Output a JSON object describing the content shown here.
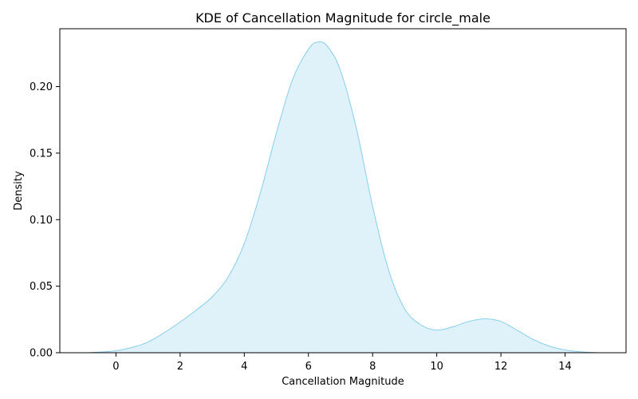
{
  "chart_data": {
    "type": "area",
    "title": "KDE of Cancellation Magnitude for circle_male",
    "xlabel": "Cancellation Magnitude",
    "ylabel": "Density",
    "xlim": [
      -1.75,
      15.9
    ],
    "ylim": [
      0.0,
      0.2435
    ],
    "grid": false,
    "xticks": [
      0,
      2,
      4,
      6,
      8,
      10,
      12,
      14
    ],
    "yticks": [
      0.0,
      0.05,
      0.1,
      0.15,
      0.2
    ],
    "ytick_labels": [
      "0.00",
      "0.05",
      "0.10",
      "0.15",
      "0.20"
    ],
    "colors": {
      "line": "#87ceeb",
      "fill": "#87ceeb",
      "fill_opacity": 0.27
    },
    "series": [
      {
        "x": [
          -0.9,
          -0.5,
          0,
          0.5,
          1,
          1.5,
          2,
          2.5,
          3,
          3.5,
          4,
          4.5,
          5,
          5.5,
          6,
          6.3,
          6.6,
          7,
          7.5,
          8,
          8.5,
          9,
          9.5,
          10,
          10.5,
          11,
          11.5,
          12,
          12.5,
          13,
          13.5,
          14,
          14.5,
          15.1
        ],
        "y": [
          0.0,
          0.0005,
          0.0015,
          0.004,
          0.008,
          0.015,
          0.023,
          0.032,
          0.042,
          0.057,
          0.082,
          0.12,
          0.165,
          0.205,
          0.228,
          0.2335,
          0.23,
          0.212,
          0.168,
          0.11,
          0.062,
          0.033,
          0.021,
          0.017,
          0.0195,
          0.0235,
          0.0255,
          0.0235,
          0.017,
          0.01,
          0.005,
          0.002,
          0.0007,
          0.0
        ]
      }
    ]
  }
}
